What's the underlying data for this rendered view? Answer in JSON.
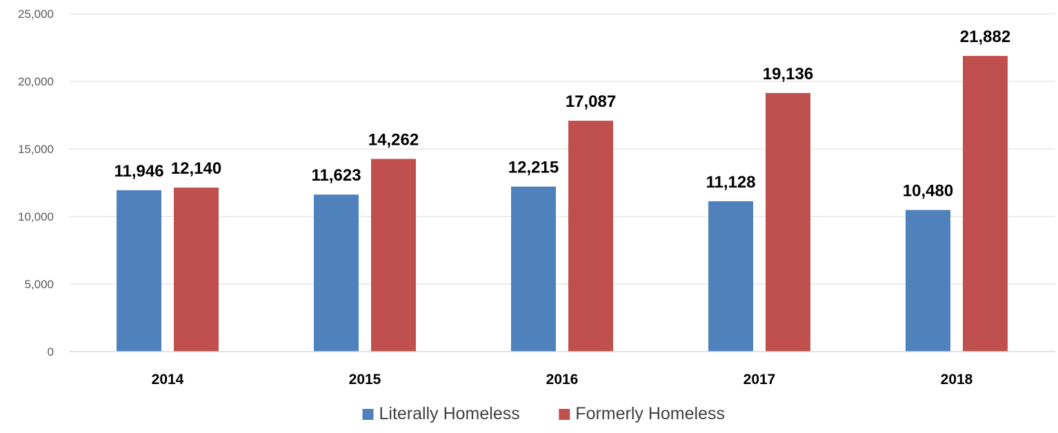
{
  "chart_data": {
    "type": "bar",
    "title": "",
    "xlabel": "",
    "ylabel": "",
    "categories": [
      "2014",
      "2015",
      "2016",
      "2017",
      "2018"
    ],
    "series": [
      {
        "name": "Literally Homeless",
        "color": "#4f81bd",
        "values": [
          11946,
          11623,
          12215,
          11128,
          10480
        ]
      },
      {
        "name": "Formerly Homeless",
        "color": "#c0504d",
        "values": [
          12140,
          14262,
          17087,
          19136,
          21882
        ]
      }
    ],
    "ylim": [
      0,
      25000
    ],
    "yticks": [
      0,
      5000,
      10000,
      15000,
      20000,
      25000
    ],
    "grid": true,
    "legend_position": "bottom",
    "data_labels": true
  }
}
